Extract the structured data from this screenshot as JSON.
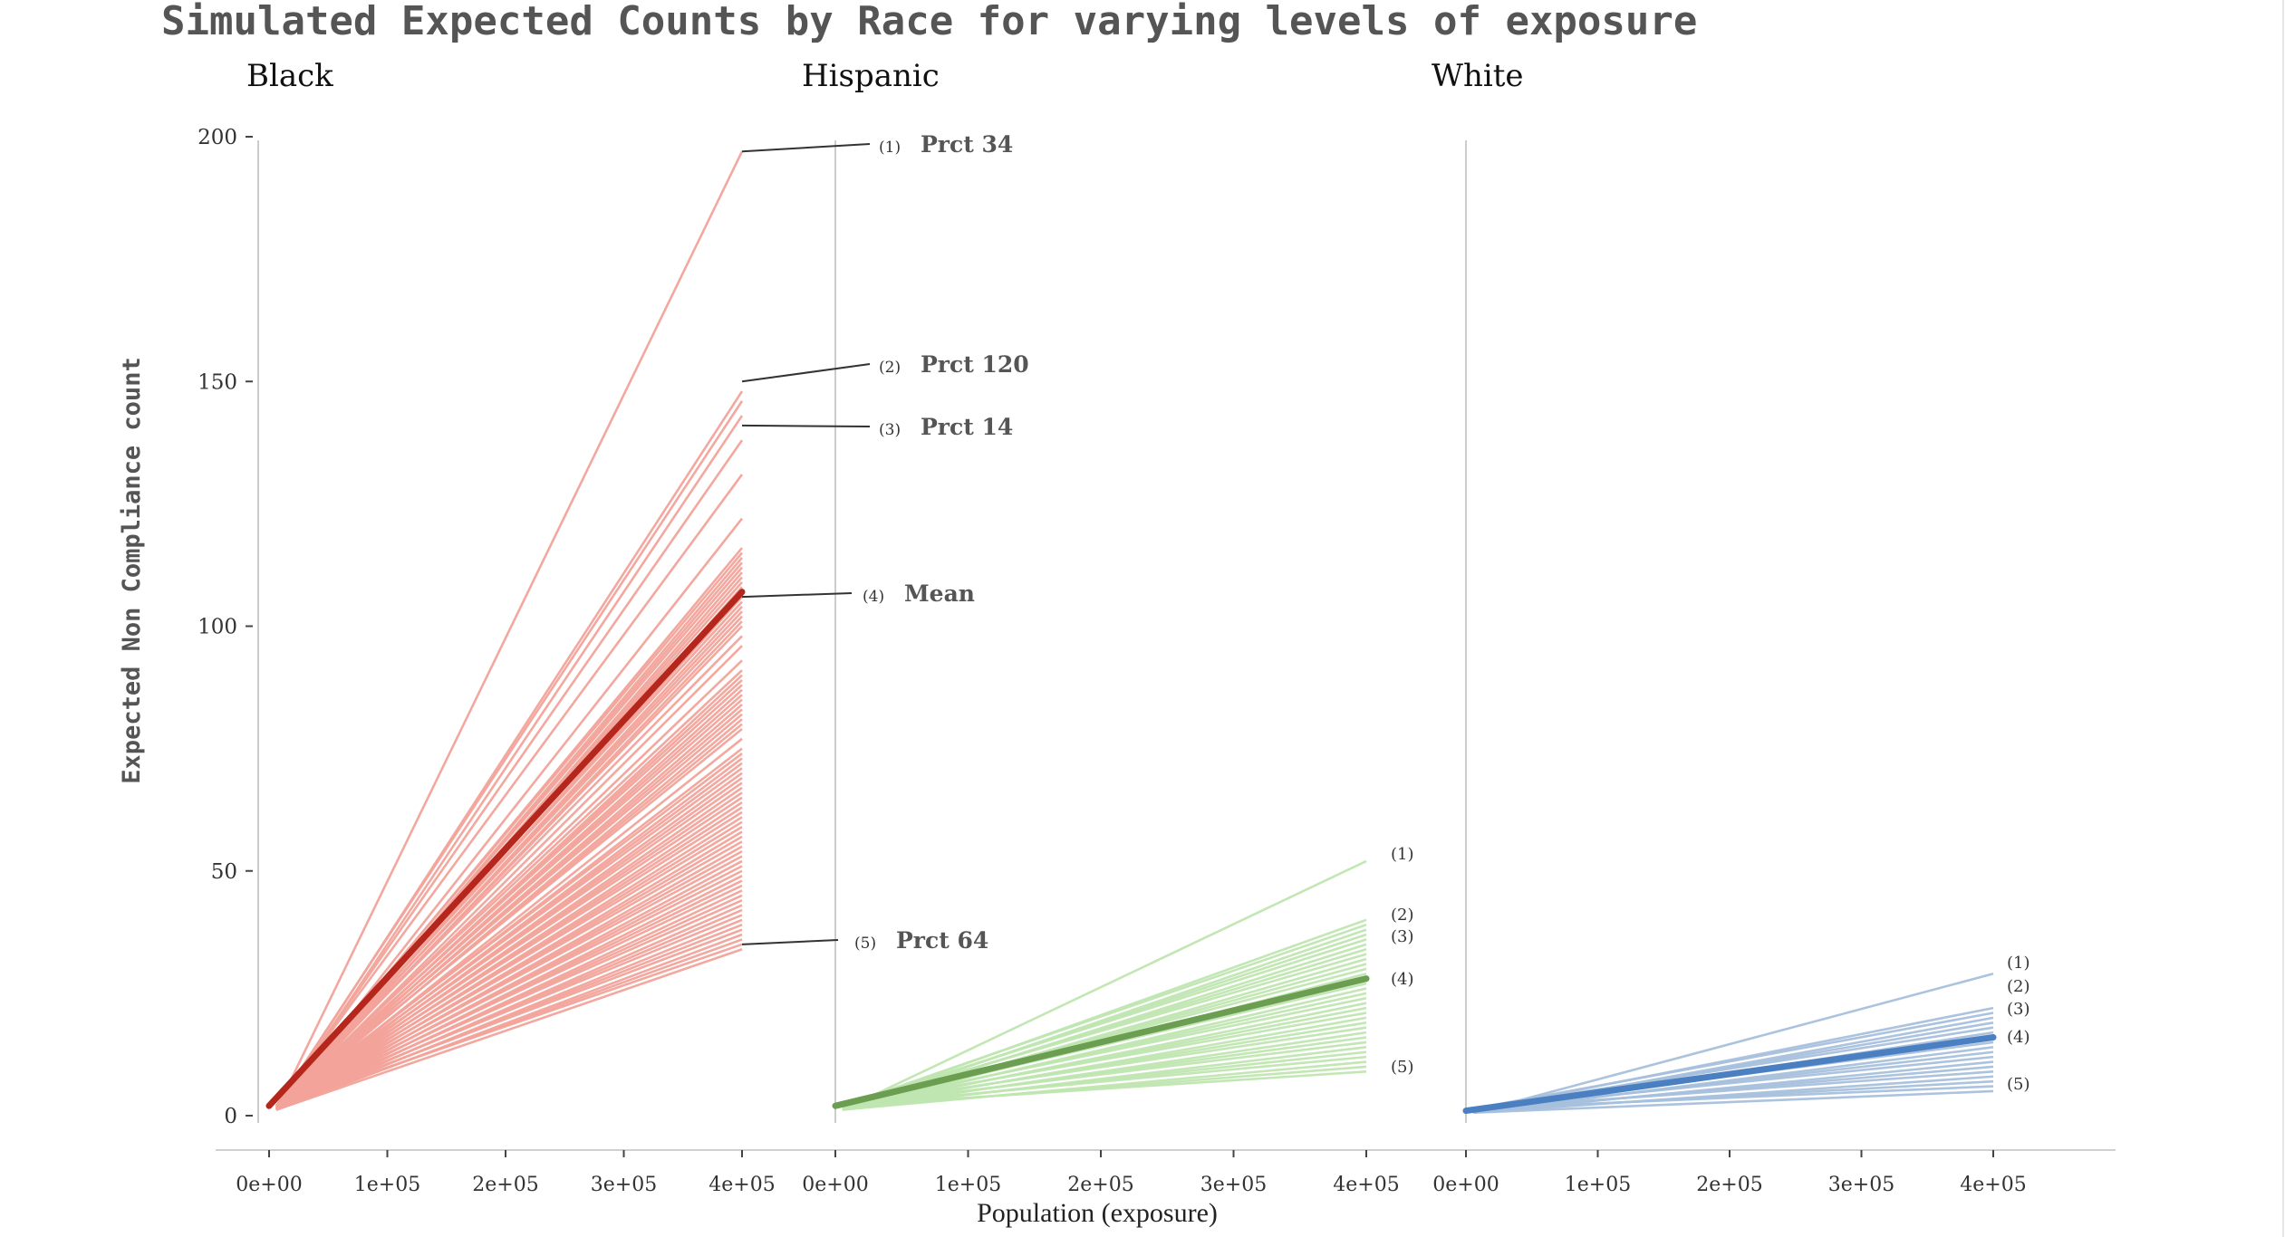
{
  "title": "Simulated Expected Counts by Race for varying levels of exposure",
  "ylabel": "Expected Non Compliance count",
  "xlabel": "Population (exposure)",
  "chart_data": {
    "type": "line",
    "title": "Simulated Expected Counts by Race for varying levels of exposure",
    "xlabel": "Population (exposure)",
    "ylabel": "Expected Non Compliance count",
    "ylim": [
      0,
      200
    ],
    "xlim": [
      0,
      400000
    ],
    "y_ticks": [
      {
        "value": 0,
        "label": "0"
      },
      {
        "value": 50,
        "label": "50"
      },
      {
        "value": 100,
        "label": "100"
      },
      {
        "value": 150,
        "label": "150"
      },
      {
        "value": 200,
        "label": "200"
      }
    ],
    "x_ticks": [
      {
        "value": 0,
        "label": "0e+00"
      },
      {
        "value": 100000,
        "label": "1e+05"
      },
      {
        "value": 200000,
        "label": "2e+05"
      },
      {
        "value": 300000,
        "label": "3e+05"
      },
      {
        "value": 400000,
        "label": "4e+05"
      }
    ],
    "grid": false,
    "panels": [
      {
        "name": "Black",
        "color_sim": "#f2a39a",
        "color_mean": "#b5271c",
        "x": [
          0,
          400000
        ],
        "mean_start": 2,
        "mean_end": 107,
        "sim_end_values": [
          197,
          148,
          146,
          143,
          138,
          131,
          122,
          116,
          115,
          114,
          113,
          112,
          111,
          110,
          109,
          108,
          106,
          105,
          104,
          103,
          102,
          101,
          100,
          98,
          96,
          93,
          91,
          90,
          89,
          88,
          87,
          86,
          85,
          84,
          83,
          82,
          81,
          80,
          79,
          77,
          75,
          74,
          73,
          72,
          71,
          70,
          69,
          68,
          67,
          66,
          65,
          64,
          63,
          62,
          61,
          60,
          59,
          58,
          57,
          56,
          55,
          54,
          53,
          52,
          51,
          50,
          49,
          48,
          47,
          46,
          45,
          44,
          43,
          42,
          41,
          40,
          39,
          38,
          37,
          36,
          35,
          34
        ],
        "annotations": [
          {
            "rank": "(1)",
            "label": "Prct 34",
            "value": 197
          },
          {
            "rank": "(2)",
            "label": "Prct 120",
            "value": 150
          },
          {
            "rank": "(3)",
            "label": "Prct 14",
            "value": 141
          },
          {
            "rank": "(4)",
            "label": "Mean",
            "value": 106
          },
          {
            "rank": "(5)",
            "label": "Prct 64",
            "value": 35
          }
        ]
      },
      {
        "name": "Hispanic",
        "color_sim": "#bfe6b0",
        "color_mean": "#6b9e50",
        "x": [
          0,
          400000
        ],
        "mean_start": 2,
        "mean_end": 28,
        "sim_end_values": [
          52,
          40,
          39,
          38,
          37,
          36,
          35,
          34,
          33,
          32,
          31,
          30,
          29,
          28,
          27,
          26,
          25,
          24,
          23,
          22,
          21,
          20,
          19,
          18,
          17,
          16,
          15,
          14,
          13,
          12,
          11,
          10,
          9
        ],
        "annotations": [
          {
            "rank": "(1)",
            "label": "",
            "value": 53
          },
          {
            "rank": "(2)",
            "label": "",
            "value": 41
          },
          {
            "rank": "(3)",
            "label": "",
            "value": 37
          },
          {
            "rank": "(4)",
            "label": "",
            "value": 28
          },
          {
            "rank": "(5)",
            "label": "",
            "value": 10
          }
        ]
      },
      {
        "name": "White",
        "color_sim": "#a7c0dc",
        "color_mean": "#4a7fc1",
        "x": [
          0,
          400000
        ],
        "mean_start": 1,
        "mean_end": 16,
        "sim_end_values": [
          29,
          22,
          21,
          20,
          19,
          18,
          17,
          16,
          15,
          14,
          13,
          12,
          11,
          10,
          9,
          8,
          7,
          6,
          5
        ],
        "annotations": [
          {
            "rank": "(1)",
            "label": "",
            "value": 31
          },
          {
            "rank": "(2)",
            "label": "",
            "value": 26
          },
          {
            "rank": "(3)",
            "label": "",
            "value": 22
          },
          {
            "rank": "(4)",
            "label": "",
            "value": 16
          },
          {
            "rank": "(5)",
            "label": "",
            "value": 7
          }
        ]
      }
    ]
  }
}
